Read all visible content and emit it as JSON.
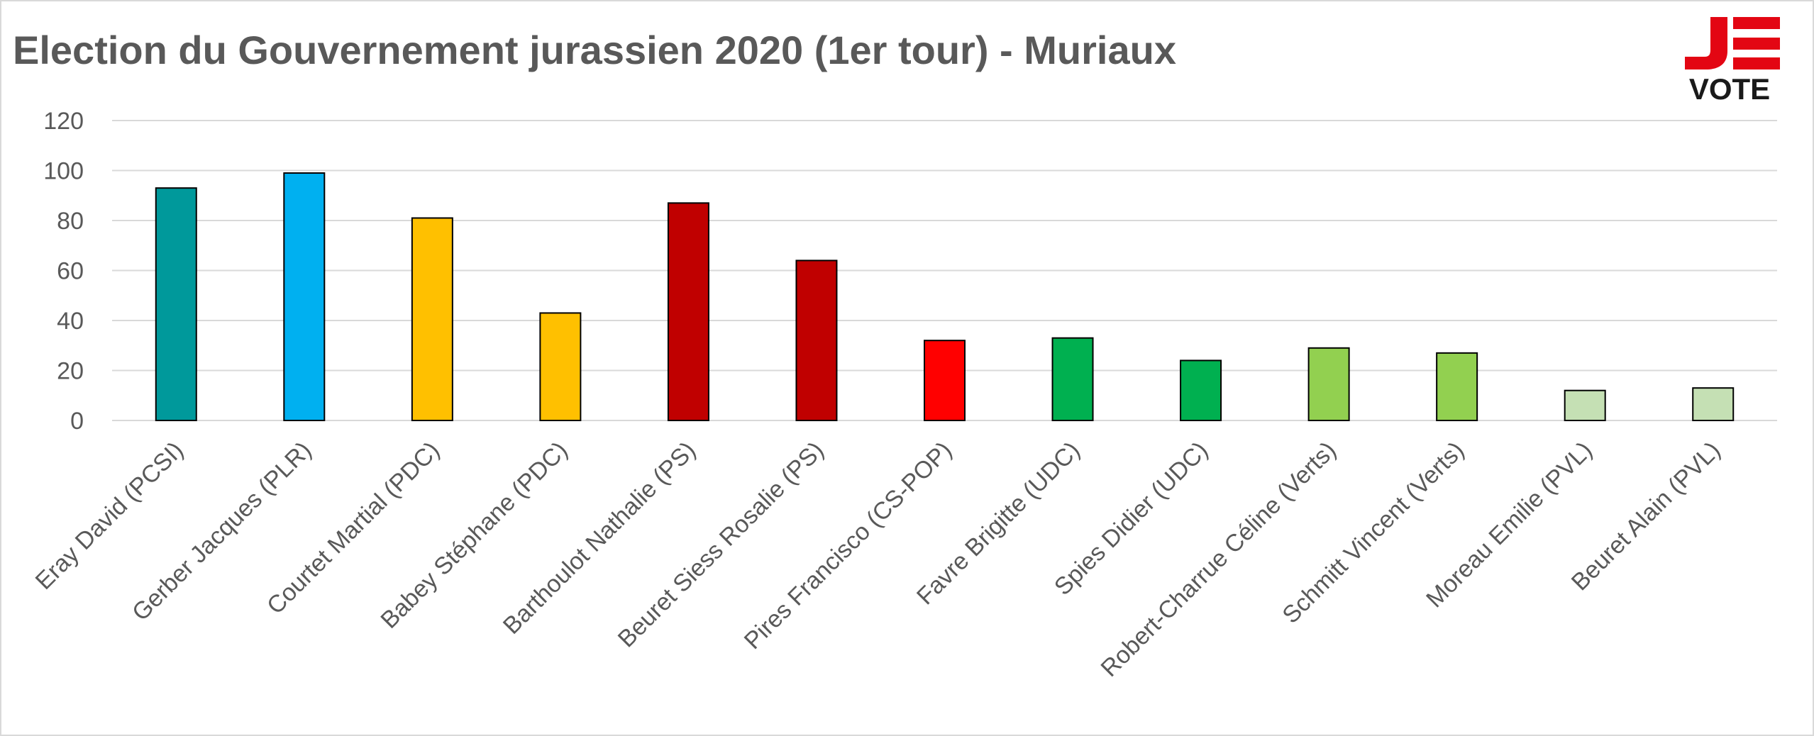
{
  "chart_data": {
    "type": "bar",
    "title": "Election du Gouvernement jurassien 2020 (1er tour) - Muriaux",
    "xlabel": "",
    "ylabel": "",
    "ylim": [
      0,
      120
    ],
    "yticks": [
      0,
      20,
      40,
      60,
      80,
      100,
      120
    ],
    "grid": true,
    "legend": "none",
    "categories": [
      "Eray David (PCSI)",
      "Gerber Jacques (PLR)",
      "Courtet Martial (PDC)",
      "Babey Stéphane (PDC)",
      "Barthoulot Nathalie (PS)",
      "Beuret Siess Rosalie (PS)",
      "Pires Francisco (CS-POP)",
      "Favre Brigitte (UDC)",
      "Spies Didier (UDC)",
      "Robert-Charrue Céline (Verts)",
      "Schmitt Vincent (Verts)",
      "Moreau Emilie (PVL)",
      "Beuret Alain (PVL)"
    ],
    "values": [
      93,
      99,
      81,
      43,
      87,
      64,
      32,
      33,
      24,
      29,
      27,
      12,
      13
    ],
    "colors": [
      "#00999b",
      "#00b0f0",
      "#ffc000",
      "#ffc000",
      "#c00000",
      "#c00000",
      "#ff0000",
      "#00b050",
      "#00b050",
      "#92d050",
      "#92d050",
      "#c5e0b4",
      "#c5e0b4"
    ]
  },
  "logo": {
    "text": "VOTE",
    "colors": {
      "red": "#e30613",
      "black": "#1a1a1a"
    }
  }
}
